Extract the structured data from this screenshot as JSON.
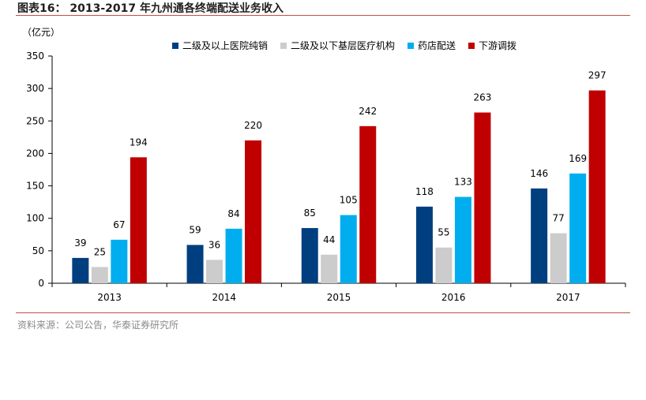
{
  "figure": {
    "title": "图表16：  2013-2017 年九州通各终端配送业务收入",
    "source": "资料来源：公司公告，华泰证券研究所"
  },
  "chart_data": {
    "type": "bar",
    "unit_label": "（亿元）",
    "categories": [
      "2013",
      "2014",
      "2015",
      "2016",
      "2017"
    ],
    "ylim": [
      0,
      350
    ],
    "yticks": [
      0,
      50,
      100,
      150,
      200,
      250,
      300,
      350
    ],
    "grid": false,
    "legend_position": "top",
    "series": [
      {
        "name": "二级及以上医院纯销",
        "color": "#003f7f",
        "values": [
          39,
          59,
          85,
          118,
          146
        ]
      },
      {
        "name": "二级及以下基层医疗机构",
        "color": "#cccccc",
        "values": [
          25,
          36,
          44,
          55,
          77
        ]
      },
      {
        "name": "药店配送",
        "color": "#00aeef",
        "values": [
          67,
          84,
          105,
          133,
          169
        ]
      },
      {
        "name": "下游调拨",
        "color": "#c00000",
        "values": [
          194,
          220,
          242,
          263,
          297
        ]
      }
    ]
  }
}
